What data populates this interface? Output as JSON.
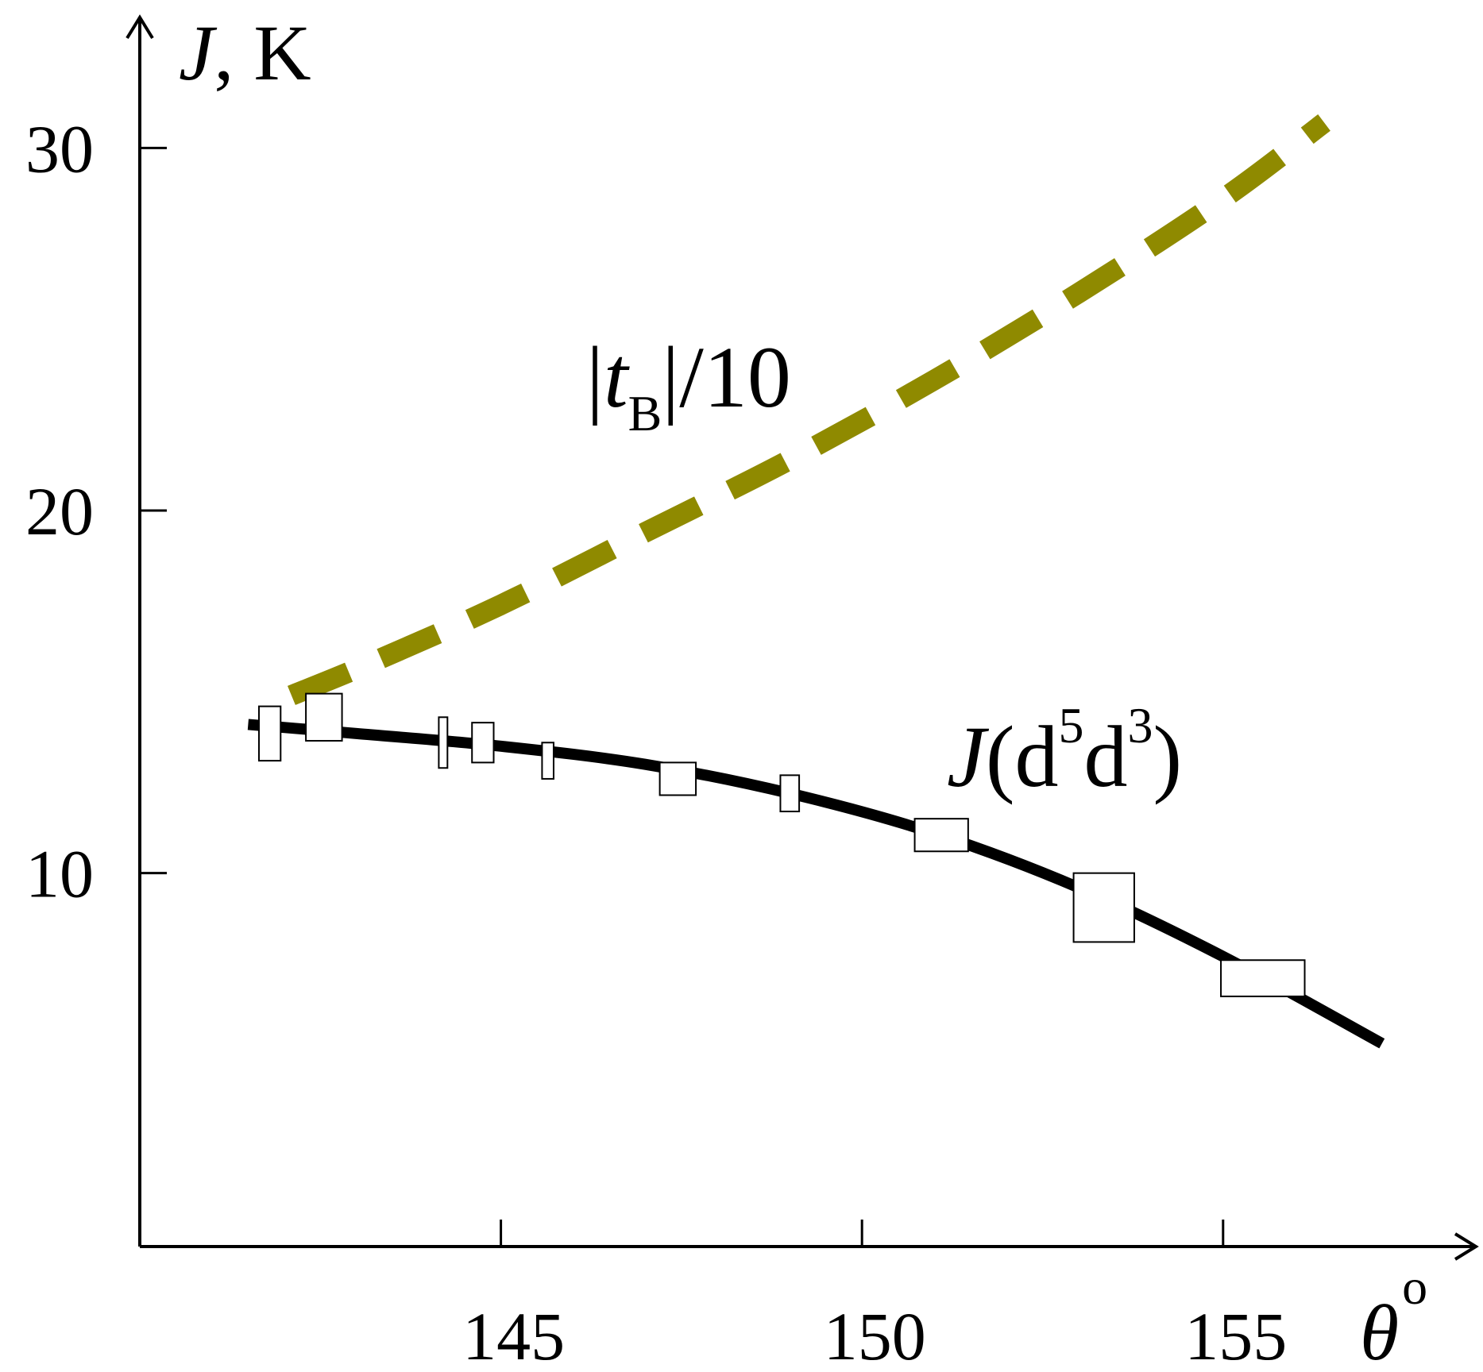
{
  "chart_data": {
    "type": "line",
    "y_axis": {
      "label_symbol": "J",
      "label_unit": ", K",
      "ylim": [
        -0.3,
        33.6
      ],
      "ticks": [
        10,
        20,
        30
      ],
      "tick_labels": [
        "10",
        "20",
        "30"
      ]
    },
    "x_axis": {
      "label_symbol": "θ",
      "label_unit": "o",
      "xlim": [
        140,
        158.5
      ],
      "ticks": [
        145,
        150,
        155
      ],
      "tick_labels": [
        "145",
        "150",
        "155"
      ]
    },
    "series": [
      {
        "name": "J(d5d3)",
        "style": "solid-black",
        "x": [
          141.5,
          143,
          145,
          147,
          149,
          151,
          153,
          155,
          157.2
        ],
        "y": [
          14.1,
          13.85,
          13.5,
          13.0,
          12.2,
          11.1,
          9.6,
          7.7,
          5.3
        ]
      },
      {
        "name": "|tB|/10",
        "style": "dashed-olive",
        "x": [
          142.1,
          143.2,
          145,
          147,
          149,
          151,
          153,
          155,
          156.4
        ],
        "y": [
          14.9,
          15.8,
          17.4,
          19.4,
          21.4,
          23.6,
          26.0,
          28.6,
          30.7
        ]
      },
      {
        "name": "",
        "style": "rectangular-error-boxes",
        "points": [
          {
            "x": 141.8,
            "y": 13.85,
            "dx": 0.15,
            "dy": 0.75
          },
          {
            "x": 142.55,
            "y": 14.3,
            "dx": 0.25,
            "dy": 0.65
          },
          {
            "x": 144.2,
            "y": 13.6,
            "dx": 0.06,
            "dy": 0.7
          },
          {
            "x": 144.75,
            "y": 13.6,
            "dx": 0.15,
            "dy": 0.55
          },
          {
            "x": 145.65,
            "y": 13.1,
            "dx": 0.08,
            "dy": 0.5
          },
          {
            "x": 147.45,
            "y": 12.6,
            "dx": 0.25,
            "dy": 0.45
          },
          {
            "x": 149.0,
            "y": 12.2,
            "dx": 0.13,
            "dy": 0.5
          },
          {
            "x": 151.1,
            "y": 11.05,
            "dx": 0.37,
            "dy": 0.45
          },
          {
            "x": 153.35,
            "y": 9.05,
            "dx": 0.42,
            "dy": 0.95
          },
          {
            "x": 155.55,
            "y": 7.1,
            "dx": 0.58,
            "dy": 0.5
          }
        ]
      }
    ],
    "annotations": {
      "tb_label": {
        "bar": "|",
        "symbol": "t",
        "subscript": "B",
        "tail": "|/10"
      },
      "j_label": {
        "symbol": "J",
        "open": "(d",
        "sup1": "5",
        "mid": "d",
        "sup2": "3",
        "close": ")"
      }
    },
    "grid": false,
    "legend": "none"
  }
}
